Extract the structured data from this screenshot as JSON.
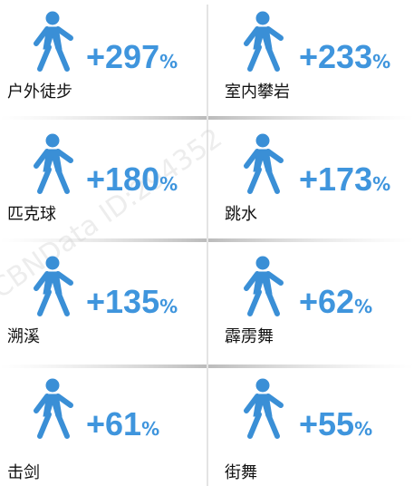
{
  "watermark": "CBNData ID:294352",
  "items": [
    {
      "label": "户外徒步",
      "change": "+297",
      "unit": "%"
    },
    {
      "label": "室内攀岩",
      "change": "+233",
      "unit": "%"
    },
    {
      "label": "匹克球",
      "change": "+180",
      "unit": "%"
    },
    {
      "label": "跳水",
      "change": "+173",
      "unit": "%"
    },
    {
      "label": "溯溪",
      "change": "+135",
      "unit": "%"
    },
    {
      "label": "霹雳舞",
      "change": "+62",
      "unit": "%"
    },
    {
      "label": "击剑",
      "change": "+61",
      "unit": "%"
    },
    {
      "label": "街舞",
      "change": "+55",
      "unit": "%"
    }
  ]
}
